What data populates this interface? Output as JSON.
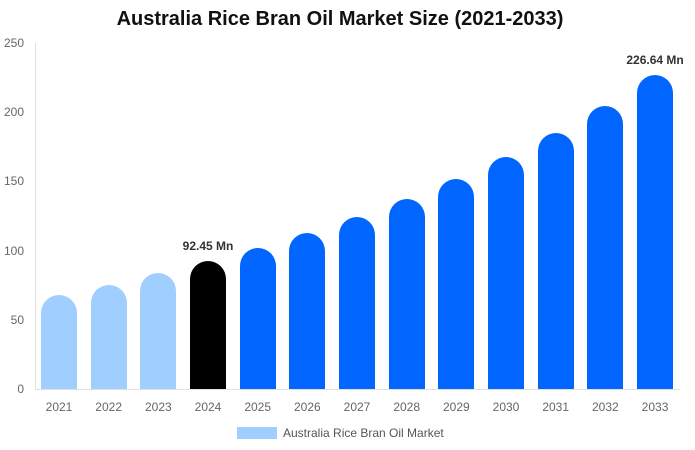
{
  "chart_data": {
    "type": "bar",
    "title": "Australia Rice Bran Oil Market Size (2021-2033)",
    "xlabel": "",
    "ylabel": "",
    "ylim": [
      0,
      250
    ],
    "yticks": [
      0,
      50,
      100,
      150,
      200,
      250
    ],
    "grid": false,
    "legend_position": "bottom",
    "categories": [
      "2021",
      "2022",
      "2023",
      "2024",
      "2025",
      "2026",
      "2027",
      "2028",
      "2029",
      "2030",
      "2031",
      "2032",
      "2033"
    ],
    "series": [
      {
        "name": "Australia Rice Bran Oil Market",
        "values": [
          67.9,
          75.1,
          83.8,
          92.45,
          101.9,
          112.7,
          124.3,
          137.3,
          151.7,
          167.6,
          185.0,
          204.5,
          226.64
        ]
      }
    ],
    "bar_colors": [
      "#a0cfff",
      "#a0cfff",
      "#a0cfff",
      "#000000",
      "#0066ff",
      "#0066ff",
      "#0066ff",
      "#0066ff",
      "#0066ff",
      "#0066ff",
      "#0066ff",
      "#0066ff",
      "#0066ff"
    ],
    "annotations": [
      {
        "category": "2024",
        "text": "92.45 Mn"
      },
      {
        "category": "2033",
        "text": "226.64 Mn"
      }
    ]
  },
  "colors": {
    "historical": "#a0cfff",
    "base_year": "#000000",
    "forecast": "#0066ff"
  }
}
